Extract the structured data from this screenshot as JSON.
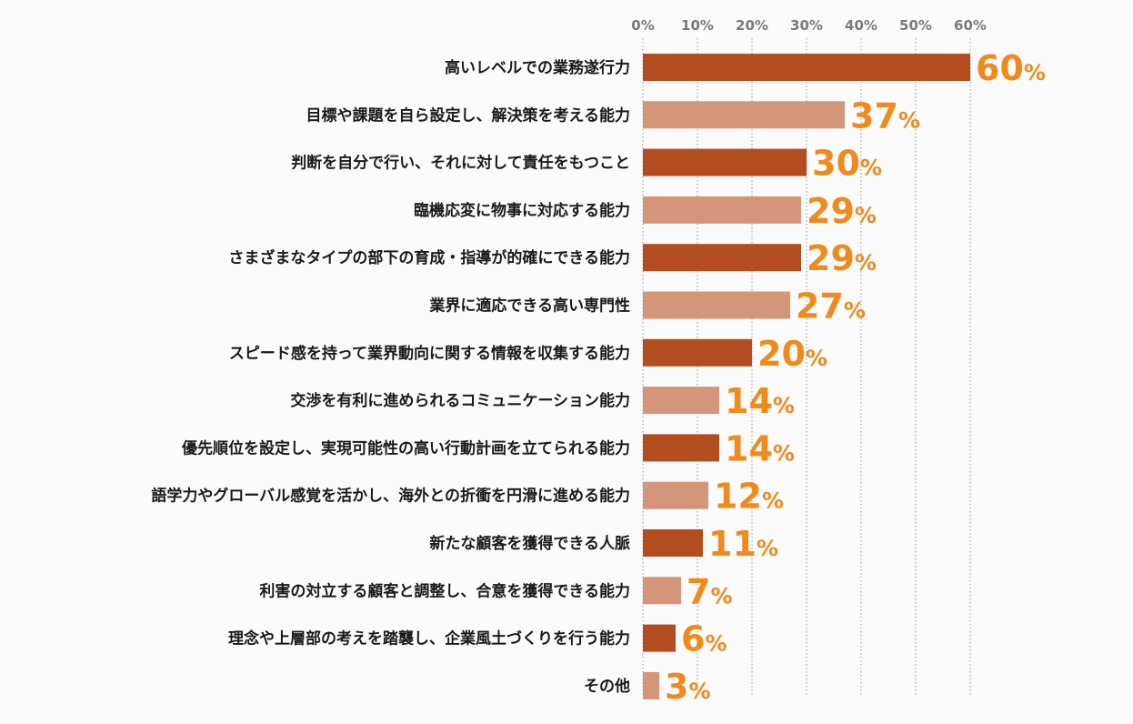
{
  "chart_data": {
    "type": "bar",
    "orientation": "horizontal",
    "xlim": [
      0,
      60
    ],
    "ticks": [
      {
        "value": 0,
        "label": "0%"
      },
      {
        "value": 10,
        "label": "10%"
      },
      {
        "value": 20,
        "label": "20%"
      },
      {
        "value": 30,
        "label": "30%"
      },
      {
        "value": 40,
        "label": "40%"
      },
      {
        "value": 50,
        "label": "50%"
      },
      {
        "value": 60,
        "label": "60%"
      }
    ],
    "grid": "dotted vertical",
    "unit": "%",
    "categories": [
      "高いレベルでの業務遂行力",
      "目標や課題を自ら設定し、解決策を考える能力",
      "判断を自分で行い、それに対して責任をもつこと",
      "臨機応変に物事に対応する能力",
      "さまざまなタイプの部下の育成・指導が的確にできる能力",
      "業界に適応できる高い専門性",
      "スピード感を持って業界動向に関する情報を収集する能力",
      "交渉を有利に進められるコミュニケーション能力",
      "優先順位を設定し、実現可能性の高い行動計画を立てられる能力",
      "語学力やグローバル感覚を活かし、海外との折衝を円滑に進める能力",
      "新たな顧客を獲得できる人脈",
      "利害の対立する顧客と調整し、合意を獲得できる能力",
      "理念や上層部の考えを踏襲し、企業風土づくりを行う能力",
      "その他"
    ],
    "values": [
      60,
      37,
      30,
      29,
      29,
      27,
      20,
      14,
      14,
      12,
      11,
      7,
      6,
      3
    ],
    "colors": {
      "bar_dark": "#b34d1f",
      "bar_light": "#d4967a",
      "value_label": "#f08a1c",
      "category_label": "#1a1a1a",
      "tick_label": "#7a7a7a",
      "grid": "#9a9a9a"
    }
  }
}
